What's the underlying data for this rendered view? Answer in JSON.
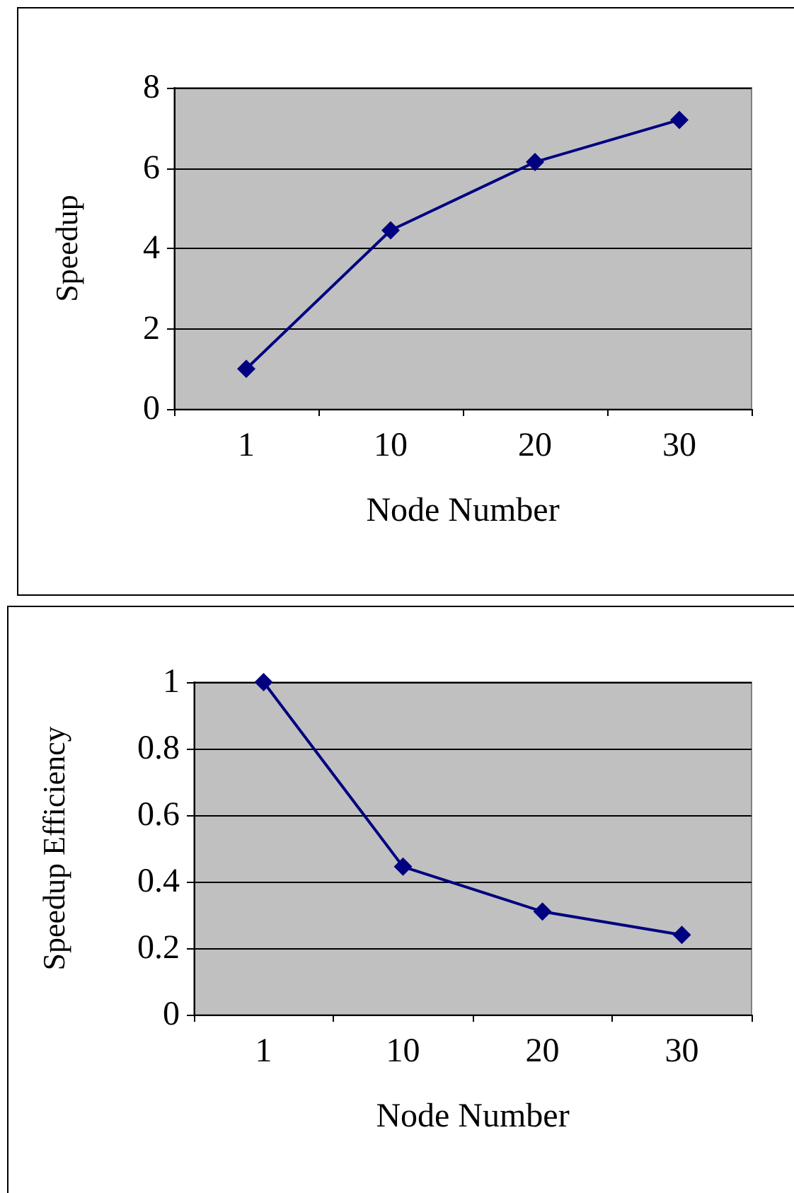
{
  "chart_data": [
    {
      "type": "line",
      "xlabel": "Node Number",
      "ylabel": "Speedup",
      "categories": [
        "1",
        "10",
        "20",
        "30"
      ],
      "series": [
        {
          "color": "#000080",
          "values": [
            1,
            4.45,
            6.15,
            7.2
          ]
        }
      ],
      "ylim": [
        0,
        8
      ],
      "yticks": [
        0,
        2,
        4,
        6,
        8
      ],
      "grid": "y",
      "marker": "diamond",
      "line_style": "solid"
    },
    {
      "type": "line",
      "xlabel": "Node Number",
      "ylabel": "Speedup Efficiency",
      "categories": [
        "1",
        "10",
        "20",
        "30"
      ],
      "series": [
        {
          "color": "#000080",
          "values": [
            1,
            0.445,
            0.31,
            0.24
          ]
        }
      ],
      "ylim": [
        0,
        1
      ],
      "yticks": [
        0,
        0.2,
        0.4,
        0.6,
        0.8,
        1
      ],
      "grid": "y",
      "marker": "diamond",
      "line_style": "solid"
    }
  ]
}
